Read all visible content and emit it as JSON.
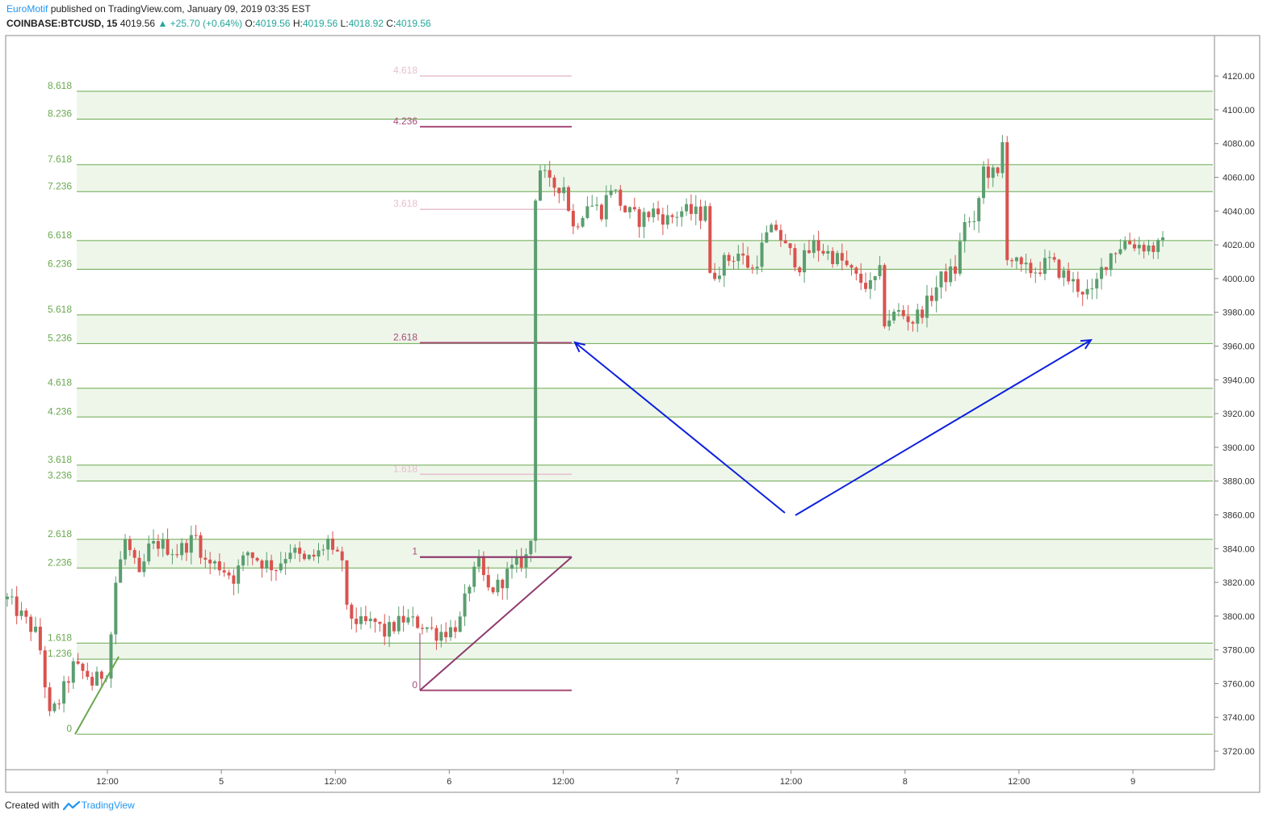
{
  "header": {
    "author": "EuroMotif",
    "published_text": "published on TradingView.com, January 09, 2019 03:35 EST",
    "symbol": "COINBASE:BTCUSD, 15",
    "last_price": "4019.56",
    "change": "+25.70 (+0.64%)",
    "o_label": "O:",
    "o_value": "4019.56",
    "h_label": "H:",
    "h_value": "4019.56",
    "l_label": "L:",
    "l_value": "4018.92",
    "c_label": "C:",
    "c_value": "4019.56"
  },
  "footer": {
    "created_with": "Created with",
    "brand": "TradingView"
  },
  "colors": {
    "fib_green": "#6aa84f",
    "fib_band": "#eef6ea",
    "fib_purple": "#a64d79",
    "fib_faint": "#e8bfcf",
    "up_candle": "#5a9e6f",
    "down_candle": "#d9534f",
    "arrow_blue": "#0d1fe0",
    "triangle": "#8e3b6e"
  },
  "chart_data": {
    "type": "candlestick",
    "y_axis_ticks": [
      3720,
      3740,
      3760,
      3780,
      3800,
      3820,
      3840,
      3860,
      3880,
      3900,
      3920,
      3940,
      3960,
      3980,
      4000,
      4020,
      4040,
      4060,
      4080,
      4100,
      4120
    ],
    "y_axis_tick_labels": [
      "3720.00",
      "3740.00",
      "3760.00",
      "3780.00",
      "3800.00",
      "3820.00",
      "3840.00",
      "3860.00",
      "3880.00",
      "3900.00",
      "3920.00",
      "3940.00",
      "3960.00",
      "3980.00",
      "4000.00",
      "4020.00",
      "4040.00",
      "4060.00",
      "4080.00",
      "4100.00",
      "4120.00"
    ],
    "ylim": [
      3709,
      4144
    ],
    "x_axis_labels": [
      "12:00",
      "5",
      "12:00",
      "6",
      "12:00",
      "7",
      "12:00",
      "8",
      "12:00",
      "9"
    ],
    "fib_extension_left": {
      "levels": [
        "0",
        "1.236",
        "1.618",
        "2.236",
        "2.618",
        "3.236",
        "3.618",
        "4.236",
        "4.618",
        "5.236",
        "5.618",
        "6.236",
        "6.618",
        "7.236",
        "7.618",
        "8.236",
        "8.618"
      ],
      "prices": [
        3730,
        3774.5,
        3784,
        3828.5,
        3845.5,
        3880,
        3889.5,
        3918,
        3935,
        3961.5,
        3978.5,
        4005.5,
        4022.5,
        4051.5,
        4067.5,
        4094.5,
        4111
      ]
    },
    "fib_extension_mid": {
      "levels": [
        "0",
        "1",
        "1.618",
        "2.618",
        "3.618",
        "4.236",
        "4.618"
      ],
      "prices": [
        3756,
        3835,
        3884,
        3962,
        4041,
        4090,
        4120
      ],
      "highlighted": [
        "0",
        "1",
        "2.618",
        "4.236"
      ]
    },
    "candle_path": [
      [
        0,
        3810
      ],
      [
        3,
        3800
      ],
      [
        6,
        3790
      ],
      [
        7,
        3780
      ],
      [
        8,
        3760
      ],
      [
        9,
        3740
      ],
      [
        11,
        3750
      ],
      [
        14,
        3770
      ],
      [
        17,
        3765
      ],
      [
        18,
        3760
      ],
      [
        21,
        3768
      ],
      [
        22,
        3790
      ],
      [
        23,
        3820
      ],
      [
        25,
        3845
      ],
      [
        27,
        3830
      ],
      [
        28,
        3822
      ],
      [
        30,
        3840
      ],
      [
        32,
        3843
      ],
      [
        36,
        3838
      ],
      [
        40,
        3847
      ],
      [
        42,
        3832
      ],
      [
        45,
        3830
      ],
      [
        48,
        3823
      ],
      [
        51,
        3838
      ],
      [
        54,
        3832
      ],
      [
        57,
        3829
      ],
      [
        60,
        3840
      ],
      [
        63,
        3832
      ],
      [
        66,
        3837
      ],
      [
        68,
        3845
      ],
      [
        69,
        3835
      ],
      [
        71,
        3834
      ],
      [
        72,
        3802
      ],
      [
        75,
        3795
      ],
      [
        78,
        3796
      ],
      [
        80,
        3790
      ],
      [
        84,
        3798
      ],
      [
        88,
        3795
      ],
      [
        91,
        3790
      ],
      [
        94,
        3792
      ],
      [
        96,
        3797
      ],
      [
        98,
        3820
      ],
      [
        100,
        3830
      ],
      [
        102,
        3815
      ],
      [
        104,
        3818
      ],
      [
        106,
        3825
      ],
      [
        108,
        3830
      ],
      [
        110,
        3835
      ],
      [
        111,
        3845
      ],
      [
        112,
        4050
      ],
      [
        113,
        4065
      ],
      [
        115,
        4055
      ],
      [
        118,
        4055
      ],
      [
        120,
        4030
      ],
      [
        123,
        4045
      ],
      [
        126,
        4040
      ],
      [
        128,
        4055
      ],
      [
        131,
        4040
      ],
      [
        134,
        4035
      ],
      [
        137,
        4040
      ],
      [
        140,
        4035
      ],
      [
        143,
        4040
      ],
      [
        147,
        4038
      ],
      [
        148,
        4045
      ],
      [
        149,
        4000
      ],
      [
        152,
        4010
      ],
      [
        155,
        4015
      ],
      [
        158,
        4005
      ],
      [
        161,
        4025
      ],
      [
        163,
        4030
      ],
      [
        165,
        4018
      ],
      [
        168,
        4008
      ],
      [
        171,
        4020
      ],
      [
        174,
        4015
      ],
      [
        177,
        4010
      ],
      [
        180,
        4000
      ],
      [
        183,
        3995
      ],
      [
        185,
        4003
      ],
      [
        186,
        3975
      ],
      [
        189,
        3980
      ],
      [
        192,
        3975
      ],
      [
        195,
        3985
      ],
      [
        198,
        4000
      ],
      [
        201,
        4005
      ],
      [
        203,
        4035
      ],
      [
        205,
        4030
      ],
      [
        207,
        4065
      ],
      [
        210,
        4060
      ],
      [
        211,
        4080
      ],
      [
        212,
        4015
      ],
      [
        215,
        4005
      ],
      [
        218,
        4005
      ],
      [
        221,
        4010
      ],
      [
        224,
        4002
      ],
      [
        227,
        3995
      ],
      [
        230,
        3990
      ],
      [
        232,
        4005
      ],
      [
        234,
        4015
      ],
      [
        237,
        4022
      ],
      [
        240,
        4020
      ],
      [
        243,
        4018
      ],
      [
        245,
        4020
      ]
    ],
    "candle_count": 246
  },
  "annotations": {
    "blue_arrows": 2,
    "triangle_pattern": "ascending"
  }
}
